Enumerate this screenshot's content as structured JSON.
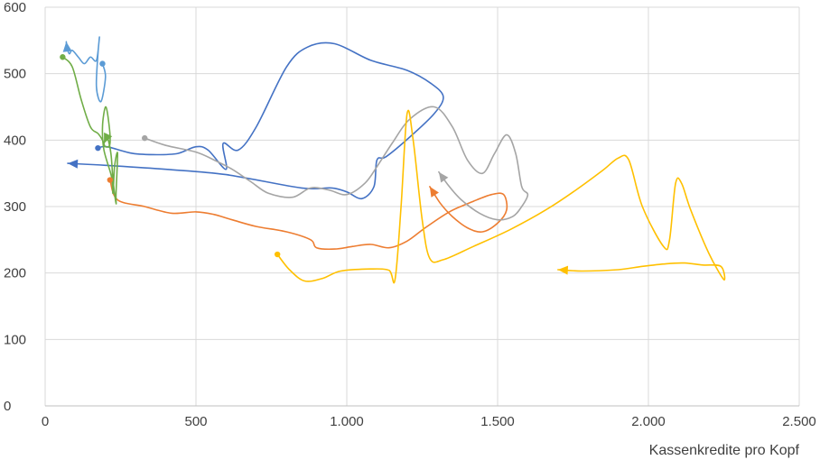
{
  "chart_data": {
    "type": "line",
    "title": "",
    "xlabel": "Kassenkredite pro Kopf",
    "ylabel": "",
    "xlim": [
      0,
      2500
    ],
    "ylim": [
      0,
      600
    ],
    "grid": true,
    "legend": "none",
    "x_ticks": [
      "0",
      "500",
      "1.000",
      "1.500",
      "2.000",
      "2.500"
    ],
    "y_ticks": [
      "0",
      "100",
      "200",
      "300",
      "400",
      "500",
      "600"
    ],
    "x_tick_values": [
      0,
      500,
      1000,
      1500,
      2000,
      2500
    ],
    "y_tick_values": [
      0,
      100,
      200,
      300,
      400,
      500,
      600
    ],
    "series": [
      {
        "color": "#4472c4",
        "marker_start": "dot",
        "marker_end": "arrow",
        "points": [
          [
            175,
            388
          ],
          [
            205,
            390
          ],
          [
            290,
            380
          ],
          [
            370,
            378
          ],
          [
            440,
            380
          ],
          [
            500,
            390
          ],
          [
            540,
            385
          ],
          [
            600,
            356
          ],
          [
            590,
            395
          ],
          [
            640,
            385
          ],
          [
            700,
            420
          ],
          [
            800,
            510
          ],
          [
            870,
            540
          ],
          [
            960,
            545
          ],
          [
            1080,
            520
          ],
          [
            1200,
            505
          ],
          [
            1280,
            485
          ],
          [
            1320,
            465
          ],
          [
            1290,
            440
          ],
          [
            1210,
            405
          ],
          [
            1130,
            375
          ],
          [
            1100,
            370
          ],
          [
            1090,
            330
          ],
          [
            1050,
            312
          ],
          [
            1000,
            322
          ],
          [
            950,
            328
          ],
          [
            850,
            328
          ],
          [
            600,
            348
          ],
          [
            400,
            356
          ],
          [
            200,
            362
          ],
          [
            75,
            365
          ]
        ]
      },
      {
        "color": "#ed7d31",
        "marker_start": "dot",
        "marker_end": "arrow",
        "points": [
          [
            215,
            340
          ],
          [
            240,
            310
          ],
          [
            330,
            300
          ],
          [
            420,
            290
          ],
          [
            500,
            292
          ],
          [
            560,
            288
          ],
          [
            620,
            280
          ],
          [
            700,
            270
          ],
          [
            800,
            262
          ],
          [
            880,
            250
          ],
          [
            900,
            238
          ],
          [
            960,
            236
          ],
          [
            1020,
            240
          ],
          [
            1080,
            243
          ],
          [
            1140,
            238
          ],
          [
            1200,
            248
          ],
          [
            1260,
            268
          ],
          [
            1340,
            292
          ],
          [
            1420,
            308
          ],
          [
            1480,
            318
          ],
          [
            1520,
            318
          ],
          [
            1530,
            295
          ],
          [
            1500,
            275
          ],
          [
            1450,
            262
          ],
          [
            1400,
            268
          ],
          [
            1350,
            285
          ],
          [
            1310,
            305
          ],
          [
            1275,
            330
          ]
        ]
      },
      {
        "color": "#a5a5a5",
        "marker_start": "dot",
        "marker_end": "arrow",
        "points": [
          [
            330,
            403
          ],
          [
            400,
            392
          ],
          [
            500,
            382
          ],
          [
            560,
            370
          ],
          [
            620,
            356
          ],
          [
            680,
            338
          ],
          [
            740,
            320
          ],
          [
            820,
            314
          ],
          [
            880,
            328
          ],
          [
            940,
            325
          ],
          [
            1000,
            318
          ],
          [
            1060,
            335
          ],
          [
            1100,
            360
          ],
          [
            1150,
            395
          ],
          [
            1210,
            432
          ],
          [
            1290,
            450
          ],
          [
            1350,
            420
          ],
          [
            1400,
            370
          ],
          [
            1450,
            350
          ],
          [
            1490,
            380
          ],
          [
            1530,
            408
          ],
          [
            1560,
            380
          ],
          [
            1580,
            330
          ],
          [
            1600,
            318
          ],
          [
            1580,
            300
          ],
          [
            1550,
            285
          ],
          [
            1500,
            280
          ],
          [
            1440,
            290
          ],
          [
            1380,
            310
          ],
          [
            1340,
            330
          ],
          [
            1305,
            352
          ]
        ]
      },
      {
        "color": "#ffc000",
        "marker_start": "dot",
        "marker_end": "arrow",
        "points": [
          [
            770,
            228
          ],
          [
            810,
            205
          ],
          [
            860,
            188
          ],
          [
            920,
            192
          ],
          [
            980,
            203
          ],
          [
            1080,
            206
          ],
          [
            1140,
            204
          ],
          [
            1160,
            190
          ],
          [
            1180,
            300
          ],
          [
            1200,
            440
          ],
          [
            1220,
            400
          ],
          [
            1250,
            280
          ],
          [
            1275,
            222
          ],
          [
            1320,
            220
          ],
          [
            1420,
            240
          ],
          [
            1540,
            265
          ],
          [
            1660,
            295
          ],
          [
            1760,
            325
          ],
          [
            1850,
            355
          ],
          [
            1900,
            373
          ],
          [
            1935,
            370
          ],
          [
            1980,
            300
          ],
          [
            2050,
            240
          ],
          [
            2070,
            250
          ],
          [
            2090,
            335
          ],
          [
            2110,
            335
          ],
          [
            2140,
            295
          ],
          [
            2200,
            230
          ],
          [
            2250,
            190
          ],
          [
            2240,
            210
          ],
          [
            2180,
            212
          ],
          [
            2120,
            215
          ],
          [
            2060,
            214
          ],
          [
            1980,
            210
          ],
          [
            1900,
            205
          ],
          [
            1780,
            203
          ],
          [
            1700,
            205
          ]
        ]
      },
      {
        "color": "#5b9bd5",
        "marker_start": "dot",
        "marker_end": "arrow",
        "points": [
          [
            190,
            515
          ],
          [
            200,
            495
          ],
          [
            185,
            458
          ],
          [
            170,
            480
          ],
          [
            175,
            530
          ],
          [
            180,
            555
          ],
          [
            170,
            520
          ],
          [
            150,
            525
          ],
          [
            130,
            515
          ],
          [
            110,
            525
          ],
          [
            90,
            535
          ],
          [
            80,
            530
          ],
          [
            72,
            540
          ],
          [
            70,
            548
          ]
        ]
      },
      {
        "color": "#70ad47",
        "marker_start": "dot",
        "marker_end": "arrow",
        "points": [
          [
            58,
            525
          ],
          [
            90,
            510
          ],
          [
            120,
            460
          ],
          [
            150,
            420
          ],
          [
            175,
            410
          ],
          [
            190,
            400
          ],
          [
            200,
            390
          ],
          [
            215,
            395
          ],
          [
            210,
            430
          ],
          [
            200,
            450
          ],
          [
            190,
            420
          ],
          [
            195,
            385
          ],
          [
            220,
            345
          ],
          [
            225,
            320
          ],
          [
            230,
            360
          ],
          [
            240,
            380
          ],
          [
            235,
            320
          ],
          [
            235,
            305
          ],
          [
            225,
            340
          ],
          [
            218,
            380
          ],
          [
            205,
            405
          ],
          [
            195,
            395
          ]
        ]
      }
    ]
  }
}
